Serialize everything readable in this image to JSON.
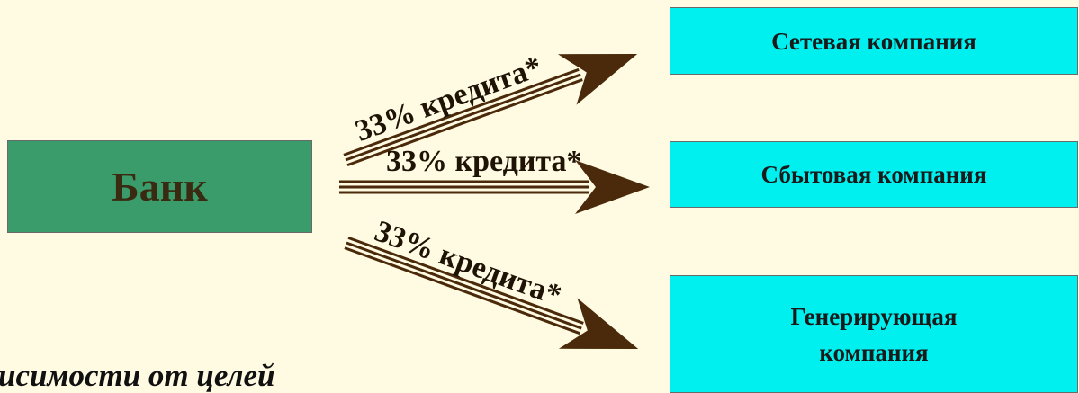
{
  "bank": {
    "label": "Банк"
  },
  "companies": [
    {
      "label": "Сетевая компания"
    },
    {
      "label": "Сбытовая компания"
    },
    {
      "label": "Генерирующая компания"
    }
  ],
  "arrows": [
    {
      "label": "33% кредита*"
    },
    {
      "label": "33% кредита*"
    },
    {
      "label": "33% кредита*"
    }
  ],
  "footnote": "исимости от целей",
  "colors": {
    "background": "#fffbe3",
    "bank": "#3a9c6a",
    "company": "#00f0f0",
    "arrow": "#4a2a0a"
  }
}
